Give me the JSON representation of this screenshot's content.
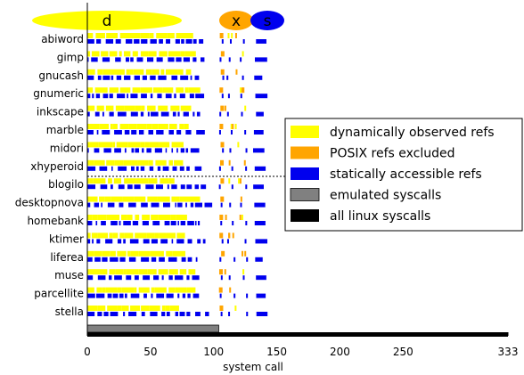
{
  "chart_data": {
    "type": "bar",
    "xlabel": "system call",
    "xlim": [
      0,
      333
    ],
    "x_ticks": [
      "0",
      "50",
      "100",
      "150",
      "200",
      "250",
      "333"
    ],
    "categories": [
      "abiword",
      "gimp",
      "gnucash",
      "gnumeric",
      "inkscape",
      "marble",
      "midori",
      "xhyperoid",
      "blogilo",
      "desktopnova",
      "homebank",
      "ktimer",
      "liferea",
      "muse",
      "parcellite",
      "stella"
    ],
    "region_bubbles": [
      {
        "label": "d",
        "center": 50,
        "color": "#ffff00"
      },
      {
        "label": "x",
        "center": 112,
        "color": "#ffa500"
      },
      {
        "label": "s",
        "center": 137,
        "color": "#0000ee"
      }
    ],
    "legend": [
      {
        "label": "dynamically observed refs",
        "color": "#ffff00"
      },
      {
        "label": "POSIX refs excluded",
        "color": "#ffa500"
      },
      {
        "label": "statically accessible refs",
        "color": "#0000ee"
      },
      {
        "label": "emulated syscalls",
        "color": "#808080"
      },
      {
        "label": "all linux syscalls",
        "color": "#000000"
      }
    ],
    "legend_position": "right",
    "summary_bars": [
      {
        "name": "emulated syscalls",
        "value": 104,
        "color": "#808080"
      },
      {
        "name": "all linux syscalls",
        "value": 333,
        "color": "#000000"
      }
    ],
    "separator_after": "xhyperoid"
  }
}
